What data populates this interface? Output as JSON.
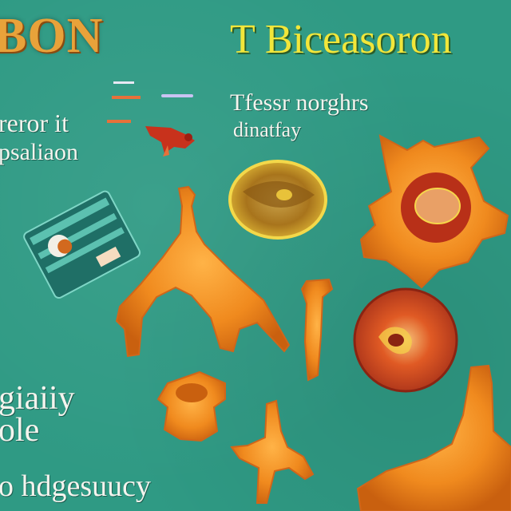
{
  "texts": {
    "title_left": "BON",
    "title_main": "T Biceasoron",
    "sub_right_1": "Tfessr norghrs",
    "sub_right_2": "dinatfay",
    "left_1": "reror it",
    "left_2": "psaliaon",
    "left_3": "giaiiy",
    "left_4": "ole",
    "bottom_line": "o hdgesuucy"
  },
  "colors": {
    "background": "#2f9a84",
    "title_left": "#e8a23a",
    "title_main": "#f2e63a",
    "body_text": "#f4f4ee",
    "organ_orange": "#f08a1e",
    "organ_red": "#c8321c"
  },
  "illustrations": [
    "small-tools-icon",
    "red-bird-icon",
    "tile-chip-icon",
    "y-shaped-organ-icon",
    "yellow-oval-cell-icon",
    "star-cell-with-red-core-icon",
    "vertical-stem-icon",
    "round-red-cell-icon",
    "vertebra-like-organ-icon",
    "small-branch-organ-icon",
    "large-curved-organ-icon"
  ]
}
